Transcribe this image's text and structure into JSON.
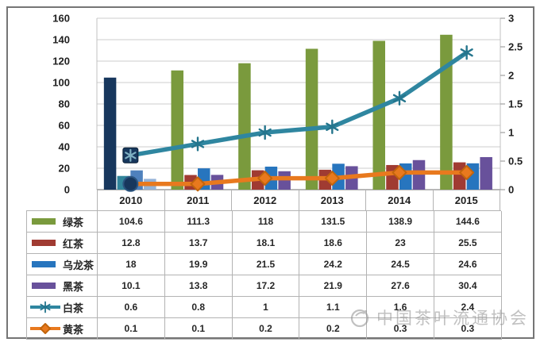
{
  "chart_data": {
    "type": "combo-bar-line",
    "title": "",
    "categories": [
      "2010",
      "2011",
      "2012",
      "2013",
      "2014",
      "2015"
    ],
    "series": [
      {
        "name": "绿茶",
        "chart": "bar",
        "axis": "left",
        "color": "#7A9A3D",
        "first_point_color": "#17375D",
        "values": [
          "104.6",
          "111.3",
          "118",
          "131.5",
          "138.9",
          "144.6"
        ]
      },
      {
        "name": "红茶",
        "chart": "bar",
        "axis": "left",
        "color": "#A03B32",
        "first_point_color": "#31859B",
        "values": [
          "12.8",
          "13.7",
          "18.1",
          "18.6",
          "23",
          "25.5"
        ]
      },
      {
        "name": "乌龙茶",
        "chart": "bar",
        "axis": "left",
        "color": "#2775BE",
        "first_point_color": "#4F81BD",
        "values": [
          "18",
          "19.9",
          "21.5",
          "24.2",
          "24.5",
          "24.6"
        ]
      },
      {
        "name": "黑茶",
        "chart": "bar",
        "axis": "left",
        "color": "#68519B",
        "first_point_color": "#95B3D7",
        "values": [
          "10.1",
          "13.8",
          "17.2",
          "21.9",
          "27.6",
          "30.4"
        ]
      },
      {
        "name": "白茶",
        "chart": "line",
        "axis": "right",
        "color": "#2F86A0",
        "marker": "asterisk",
        "first_marker_color": "#17375D",
        "values": [
          "0.6",
          "0.8",
          "1",
          "1.1",
          "1.6",
          "2.4"
        ]
      },
      {
        "name": "黄茶",
        "chart": "line",
        "axis": "right",
        "color": "#E8791E",
        "marker": "diamond",
        "marker_stroke": "#C2650C",
        "first_marker_color": "#17375D",
        "values": [
          "0.1",
          "0.1",
          "0.2",
          "0.2",
          "0.3",
          "0.3"
        ]
      }
    ],
    "left_axis": {
      "min": 0,
      "max": 160,
      "step": 20,
      "ticks": [
        "160",
        "140",
        "120",
        "100",
        "80",
        "60",
        "40",
        "20",
        "0"
      ]
    },
    "right_axis": {
      "min": 0,
      "max": 3,
      "step": 0.5,
      "ticks": [
        "3",
        "2.5",
        "2",
        "1.5",
        "1",
        "0.5",
        "0"
      ]
    },
    "grid": true,
    "legend_position": "left-of-data-table"
  },
  "watermark": {
    "text": "中国茶叶流通协会"
  }
}
